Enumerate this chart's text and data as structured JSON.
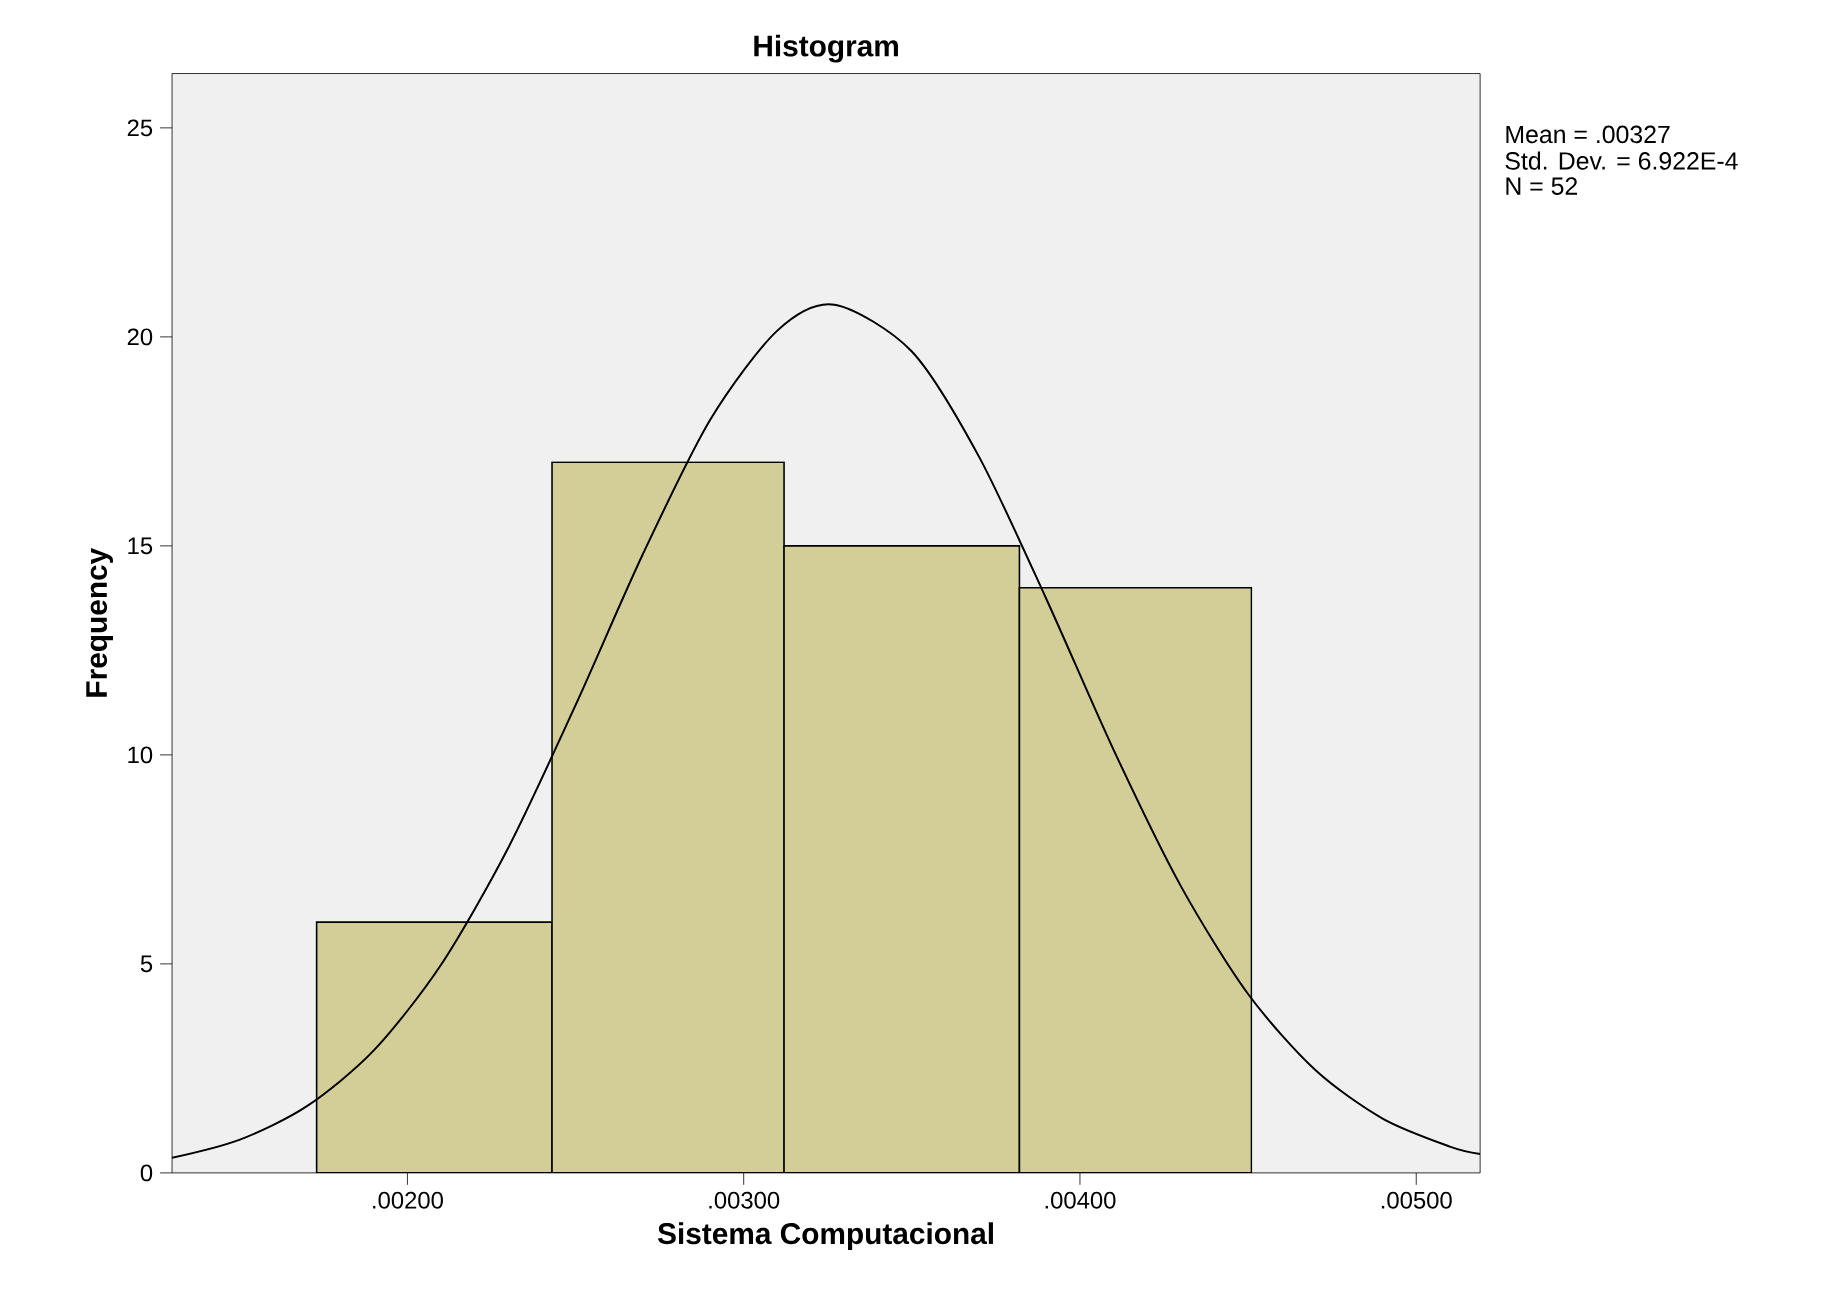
{
  "chart_data": {
    "type": "histogram",
    "title": "Histogram",
    "xlabel": "Sistema Computacional",
    "ylabel": "Frequency",
    "bins": [
      0.00173,
      0.00243,
      0.00312,
      0.00382,
      0.00451
    ],
    "values": [
      6,
      17,
      15,
      14
    ],
    "color": "#d3ce97",
    "series": [
      {
        "type": "line",
        "color": "#000000",
        "x": [
          0.0013,
          0.0015,
          0.0017,
          0.0019,
          0.0021,
          0.0023,
          0.0025,
          0.0027,
          0.0029,
          0.0031,
          0.00327,
          0.0035,
          0.0037,
          0.0039,
          0.0041,
          0.0043,
          0.0045,
          0.0047,
          0.0049,
          0.0051,
          0.00519
        ],
        "values": [
          0.36,
          0.79,
          1.59,
          2.93,
          4.98,
          7.78,
          11.19,
          14.8,
          18.01,
          20.15,
          20.77,
          19.65,
          17.13,
          13.73,
          10.12,
          6.86,
          4.28,
          2.46,
          1.3,
          0.63,
          0.45
        ]
      }
    ],
    "xlim": [
      0.0013,
      0.00519
    ],
    "ylim": [
      0,
      26.3
    ],
    "xticks": [
      {
        "value": 0.002,
        "label": ".00200"
      },
      {
        "value": 0.003,
        "label": ".00300"
      },
      {
        "value": 0.004,
        "label": ".00400"
      },
      {
        "value": 0.005,
        "label": ".00500"
      }
    ],
    "yticks": [
      0,
      5,
      10,
      15,
      20,
      25
    ],
    "grid": false,
    "annotations": [
      "Mean = .00327",
      "Std. Dev. = 6.922E-4",
      "N = 52"
    ]
  }
}
